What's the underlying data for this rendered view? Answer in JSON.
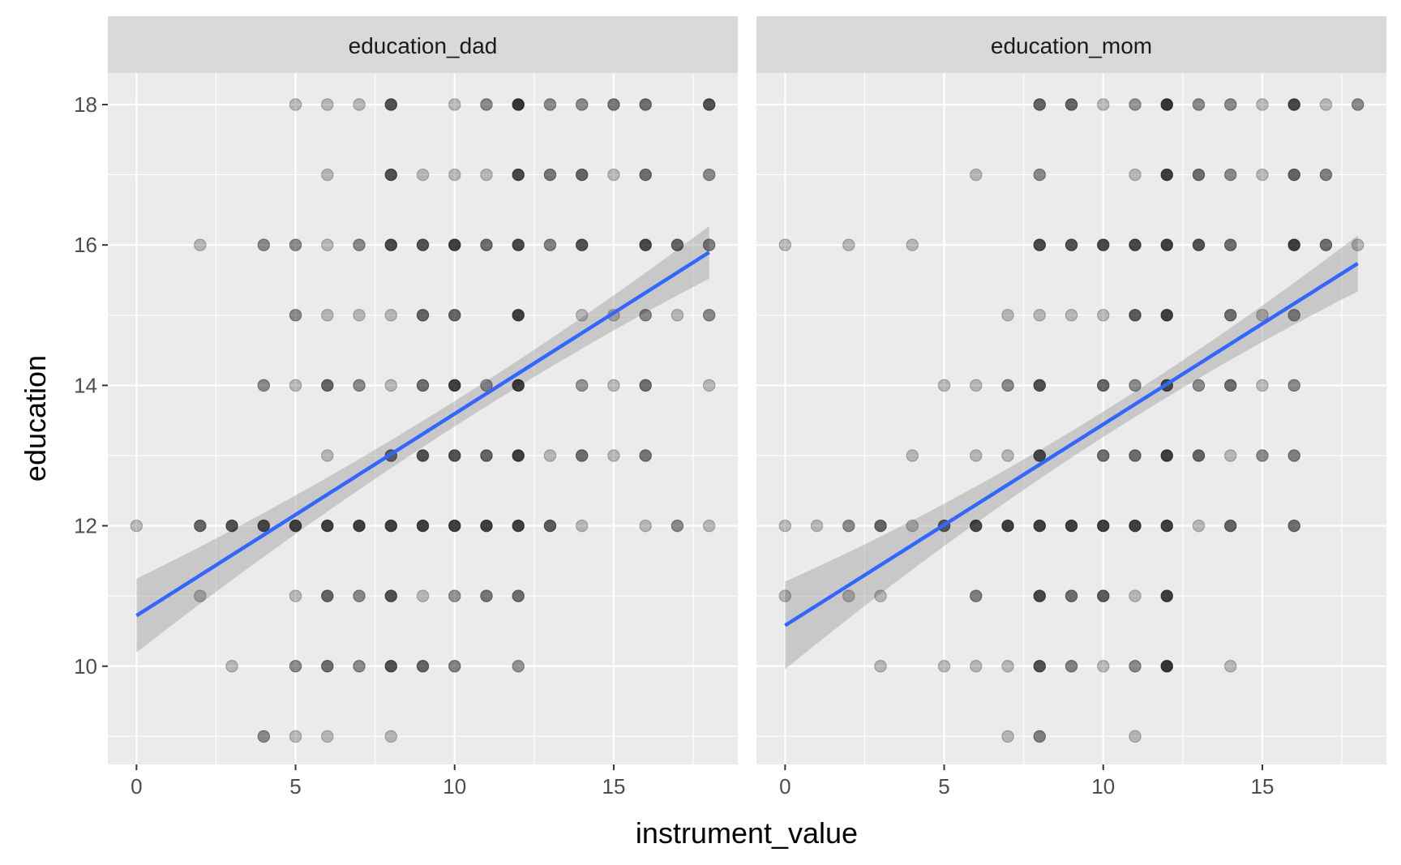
{
  "chart_data": {
    "type": "scatter",
    "xlabel": "instrument_value",
    "ylabel": "education",
    "xlim": [
      -0.9,
      18.9
    ],
    "ylim": [
      8.6,
      18.45
    ],
    "x_ticks": [
      0,
      5,
      10,
      15
    ],
    "y_ticks": [
      10,
      12,
      14,
      16,
      18
    ],
    "x_tick_labels": [
      "0",
      "5",
      "10",
      "15"
    ],
    "y_tick_labels": [
      "10",
      "12",
      "14",
      "16",
      "18"
    ],
    "grid": true,
    "point_color": "#000000",
    "line_color": "#3366FF",
    "band_color": "#999999",
    "panel_bg": "#EBEBEB",
    "strip_bg": "#D9D9D9",
    "facets": [
      {
        "label": "education_dad",
        "fit": {
          "intercept": 10.72,
          "slope": 0.2875,
          "band_at_xmin": [
            10.2,
            11.25
          ],
          "band_at_xmax": [
            15.55,
            16.3
          ],
          "x_range": [
            0,
            18
          ]
        },
        "points": [
          [
            5,
            18,
            0.3
          ],
          [
            6,
            18,
            0.3
          ],
          [
            7,
            18,
            0.3
          ],
          [
            8,
            18,
            0.85
          ],
          [
            10,
            18,
            0.3
          ],
          [
            11,
            18,
            0.55
          ],
          [
            12,
            18,
            1.0
          ],
          [
            13,
            18,
            0.55
          ],
          [
            14,
            18,
            0.55
          ],
          [
            15,
            18,
            0.65
          ],
          [
            16,
            18,
            0.7
          ],
          [
            18,
            18,
            0.85
          ],
          [
            6,
            17,
            0.3
          ],
          [
            8,
            17,
            0.85
          ],
          [
            9,
            17,
            0.3
          ],
          [
            10,
            17,
            0.3
          ],
          [
            11,
            17,
            0.3
          ],
          [
            12,
            17,
            0.9
          ],
          [
            13,
            17,
            0.65
          ],
          [
            14,
            17,
            0.75
          ],
          [
            15,
            17,
            0.3
          ],
          [
            16,
            17,
            0.7
          ],
          [
            18,
            17,
            0.55
          ],
          [
            2,
            16,
            0.3
          ],
          [
            4,
            16,
            0.55
          ],
          [
            5,
            16,
            0.55
          ],
          [
            6,
            16,
            0.3
          ],
          [
            7,
            16,
            0.55
          ],
          [
            8,
            16,
            0.9
          ],
          [
            9,
            16,
            0.85
          ],
          [
            10,
            16,
            0.95
          ],
          [
            11,
            16,
            0.7
          ],
          [
            12,
            16,
            0.9
          ],
          [
            13,
            16,
            0.6
          ],
          [
            14,
            16,
            0.85
          ],
          [
            16,
            16,
            0.9
          ],
          [
            17,
            16,
            0.75
          ],
          [
            18,
            16,
            0.6
          ],
          [
            5,
            15,
            0.55
          ],
          [
            6,
            15,
            0.3
          ],
          [
            7,
            15,
            0.3
          ],
          [
            8,
            15,
            0.3
          ],
          [
            9,
            15,
            0.75
          ],
          [
            10,
            15,
            0.75
          ],
          [
            12,
            15,
            0.95
          ],
          [
            14,
            15,
            0.3
          ],
          [
            15,
            15,
            0.3
          ],
          [
            16,
            15,
            0.55
          ],
          [
            17,
            15,
            0.3
          ],
          [
            18,
            15,
            0.55
          ],
          [
            4,
            14,
            0.55
          ],
          [
            5,
            14,
            0.3
          ],
          [
            6,
            14,
            0.75
          ],
          [
            7,
            14,
            0.55
          ],
          [
            8,
            14,
            0.3
          ],
          [
            9,
            14,
            0.7
          ],
          [
            10,
            14,
            0.95
          ],
          [
            11,
            14,
            0.5
          ],
          [
            12,
            14,
            0.95
          ],
          [
            14,
            14,
            0.5
          ],
          [
            15,
            14,
            0.3
          ],
          [
            16,
            14,
            0.7
          ],
          [
            18,
            14,
            0.3
          ],
          [
            6,
            13,
            0.3
          ],
          [
            8,
            13,
            0.7
          ],
          [
            9,
            13,
            0.85
          ],
          [
            10,
            13,
            0.85
          ],
          [
            11,
            13,
            0.75
          ],
          [
            12,
            13,
            0.95
          ],
          [
            13,
            13,
            0.3
          ],
          [
            14,
            13,
            0.7
          ],
          [
            15,
            13,
            0.3
          ],
          [
            16,
            13,
            0.65
          ],
          [
            0,
            12,
            0.3
          ],
          [
            2,
            12,
            0.75
          ],
          [
            3,
            12,
            0.85
          ],
          [
            4,
            12,
            0.85
          ],
          [
            5,
            12,
            0.9
          ],
          [
            6,
            12,
            0.95
          ],
          [
            7,
            12,
            0.95
          ],
          [
            8,
            12,
            0.95
          ],
          [
            9,
            12,
            0.95
          ],
          [
            10,
            12,
            0.95
          ],
          [
            11,
            12,
            0.95
          ],
          [
            12,
            12,
            0.95
          ],
          [
            13,
            12,
            0.8
          ],
          [
            14,
            12,
            0.3
          ],
          [
            16,
            12,
            0.3
          ],
          [
            17,
            12,
            0.55
          ],
          [
            18,
            12,
            0.3
          ],
          [
            2,
            11,
            0.3
          ],
          [
            5,
            11,
            0.3
          ],
          [
            6,
            11,
            0.75
          ],
          [
            7,
            11,
            0.55
          ],
          [
            8,
            11,
            0.85
          ],
          [
            9,
            11,
            0.3
          ],
          [
            10,
            11,
            0.5
          ],
          [
            11,
            11,
            0.65
          ],
          [
            12,
            11,
            0.7
          ],
          [
            3,
            10,
            0.3
          ],
          [
            5,
            10,
            0.55
          ],
          [
            6,
            10,
            0.7
          ],
          [
            7,
            10,
            0.55
          ],
          [
            8,
            10,
            0.85
          ],
          [
            9,
            10,
            0.75
          ],
          [
            10,
            10,
            0.6
          ],
          [
            12,
            10,
            0.5
          ],
          [
            4,
            9,
            0.55
          ],
          [
            5,
            9,
            0.3
          ],
          [
            6,
            9,
            0.3
          ],
          [
            8,
            9,
            0.3
          ]
        ]
      },
      {
        "label": "education_mom",
        "fit": {
          "intercept": 10.58,
          "slope": 0.2865,
          "band_at_xmin": [
            9.95,
            11.2
          ],
          "band_at_xmax": [
            15.35,
            16.15
          ],
          "x_range": [
            0,
            18
          ]
        },
        "points": [
          [
            8,
            18,
            0.75
          ],
          [
            9,
            18,
            0.75
          ],
          [
            10,
            18,
            0.3
          ],
          [
            11,
            18,
            0.5
          ],
          [
            12,
            18,
            1.0
          ],
          [
            13,
            18,
            0.55
          ],
          [
            14,
            18,
            0.55
          ],
          [
            15,
            18,
            0.3
          ],
          [
            16,
            18,
            0.9
          ],
          [
            17,
            18,
            0.3
          ],
          [
            18,
            18,
            0.55
          ],
          [
            6,
            17,
            0.3
          ],
          [
            8,
            17,
            0.55
          ],
          [
            11,
            17,
            0.3
          ],
          [
            12,
            17,
            0.95
          ],
          [
            13,
            17,
            0.7
          ],
          [
            14,
            17,
            0.55
          ],
          [
            15,
            17,
            0.3
          ],
          [
            16,
            17,
            0.75
          ],
          [
            17,
            17,
            0.6
          ],
          [
            0,
            16,
            0.3
          ],
          [
            2,
            16,
            0.3
          ],
          [
            4,
            16,
            0.3
          ],
          [
            8,
            16,
            0.9
          ],
          [
            9,
            16,
            0.85
          ],
          [
            10,
            16,
            0.9
          ],
          [
            11,
            16,
            0.9
          ],
          [
            12,
            16,
            0.95
          ],
          [
            13,
            16,
            0.85
          ],
          [
            14,
            16,
            0.7
          ],
          [
            16,
            16,
            0.95
          ],
          [
            17,
            16,
            0.7
          ],
          [
            18,
            16,
            0.3
          ],
          [
            7,
            15,
            0.3
          ],
          [
            8,
            15,
            0.3
          ],
          [
            9,
            15,
            0.3
          ],
          [
            10,
            15,
            0.3
          ],
          [
            11,
            15,
            0.8
          ],
          [
            12,
            15,
            0.95
          ],
          [
            14,
            15,
            0.7
          ],
          [
            15,
            15,
            0.3
          ],
          [
            16,
            15,
            0.55
          ],
          [
            5,
            14,
            0.3
          ],
          [
            6,
            14,
            0.3
          ],
          [
            7,
            14,
            0.55
          ],
          [
            8,
            14,
            0.85
          ],
          [
            10,
            14,
            0.75
          ],
          [
            11,
            14,
            0.55
          ],
          [
            12,
            14,
            0.85
          ],
          [
            13,
            14,
            0.55
          ],
          [
            14,
            14,
            0.7
          ],
          [
            15,
            14,
            0.3
          ],
          [
            16,
            14,
            0.55
          ],
          [
            4,
            13,
            0.3
          ],
          [
            6,
            13,
            0.3
          ],
          [
            7,
            13,
            0.3
          ],
          [
            8,
            13,
            0.85
          ],
          [
            10,
            13,
            0.7
          ],
          [
            11,
            13,
            0.7
          ],
          [
            12,
            13,
            0.95
          ],
          [
            13,
            13,
            0.75
          ],
          [
            14,
            13,
            0.3
          ],
          [
            15,
            13,
            0.55
          ],
          [
            16,
            13,
            0.6
          ],
          [
            0,
            12,
            0.3
          ],
          [
            1,
            12,
            0.3
          ],
          [
            2,
            12,
            0.55
          ],
          [
            3,
            12,
            0.75
          ],
          [
            4,
            12,
            0.3
          ],
          [
            5,
            12,
            0.75
          ],
          [
            6,
            12,
            0.9
          ],
          [
            7,
            12,
            0.95
          ],
          [
            8,
            12,
            0.95
          ],
          [
            9,
            12,
            0.95
          ],
          [
            10,
            12,
            0.95
          ],
          [
            11,
            12,
            0.95
          ],
          [
            12,
            12,
            0.95
          ],
          [
            13,
            12,
            0.3
          ],
          [
            14,
            12,
            0.75
          ],
          [
            16,
            12,
            0.7
          ],
          [
            0,
            11,
            0.3
          ],
          [
            2,
            11,
            0.3
          ],
          [
            3,
            11,
            0.3
          ],
          [
            6,
            11,
            0.6
          ],
          [
            8,
            11,
            0.9
          ],
          [
            9,
            11,
            0.7
          ],
          [
            10,
            11,
            0.8
          ],
          [
            11,
            11,
            0.3
          ],
          [
            12,
            11,
            0.95
          ],
          [
            3,
            10,
            0.3
          ],
          [
            5,
            10,
            0.3
          ],
          [
            6,
            10,
            0.3
          ],
          [
            7,
            10,
            0.3
          ],
          [
            8,
            10,
            0.85
          ],
          [
            9,
            10,
            0.6
          ],
          [
            10,
            10,
            0.3
          ],
          [
            11,
            10,
            0.55
          ],
          [
            12,
            10,
            1.0
          ],
          [
            14,
            10,
            0.3
          ],
          [
            7,
            9,
            0.3
          ],
          [
            8,
            9,
            0.6
          ],
          [
            11,
            9,
            0.3
          ]
        ]
      }
    ]
  }
}
